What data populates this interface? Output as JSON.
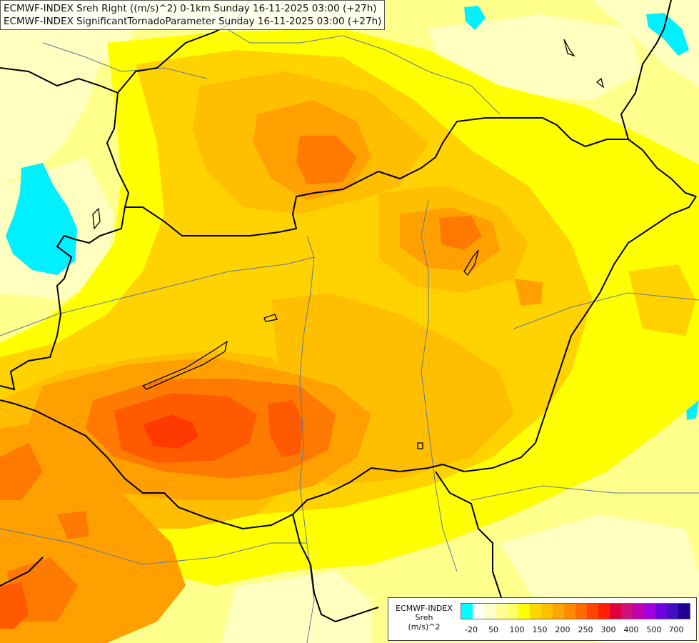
{
  "header": {
    "line1": "ECMWF-INDEX Sreh Right ((m/s)^2) 0-1km Sunday 16-11-2025 03:00 (+27h)",
    "line2": "ECMWF-INDEX SignificantTornadoParameter Sunday 16-11-2025 03:00 (+27h)"
  },
  "legend": {
    "line1": "ECMWF-INDEX",
    "line2": "Sreh",
    "line3": "(m/s)^2",
    "colors": [
      "#00ffff",
      "#ffffff",
      "#ffffcc",
      "#ffff99",
      "#ffff66",
      "#ffff00",
      "#ffd700",
      "#ffc000",
      "#ffa500",
      "#ff8c00",
      "#ff6a00",
      "#ff4500",
      "#ff2000",
      "#e0003c",
      "#d0107a",
      "#c000b0",
      "#a000e0",
      "#7000e0",
      "#4010c0",
      "#200090"
    ],
    "ticks": [
      "-20",
      "50",
      "100",
      "150",
      "200",
      "250",
      "300",
      "400",
      "500",
      "700"
    ]
  },
  "map": {
    "field_colors": {
      "background": "#ffff8c",
      "pale": "#ffffc0",
      "cyan": "#00f0ff",
      "yellow": "#ffff00",
      "gold": "#ffd200",
      "amber": "#ffbe00",
      "orange": "#ffa000",
      "dark_orange": "#ff7a00",
      "red_orange": "#ff5a00",
      "red": "#ff3a00"
    },
    "border_color": "#000000",
    "river_color": "#5a7a9a"
  }
}
